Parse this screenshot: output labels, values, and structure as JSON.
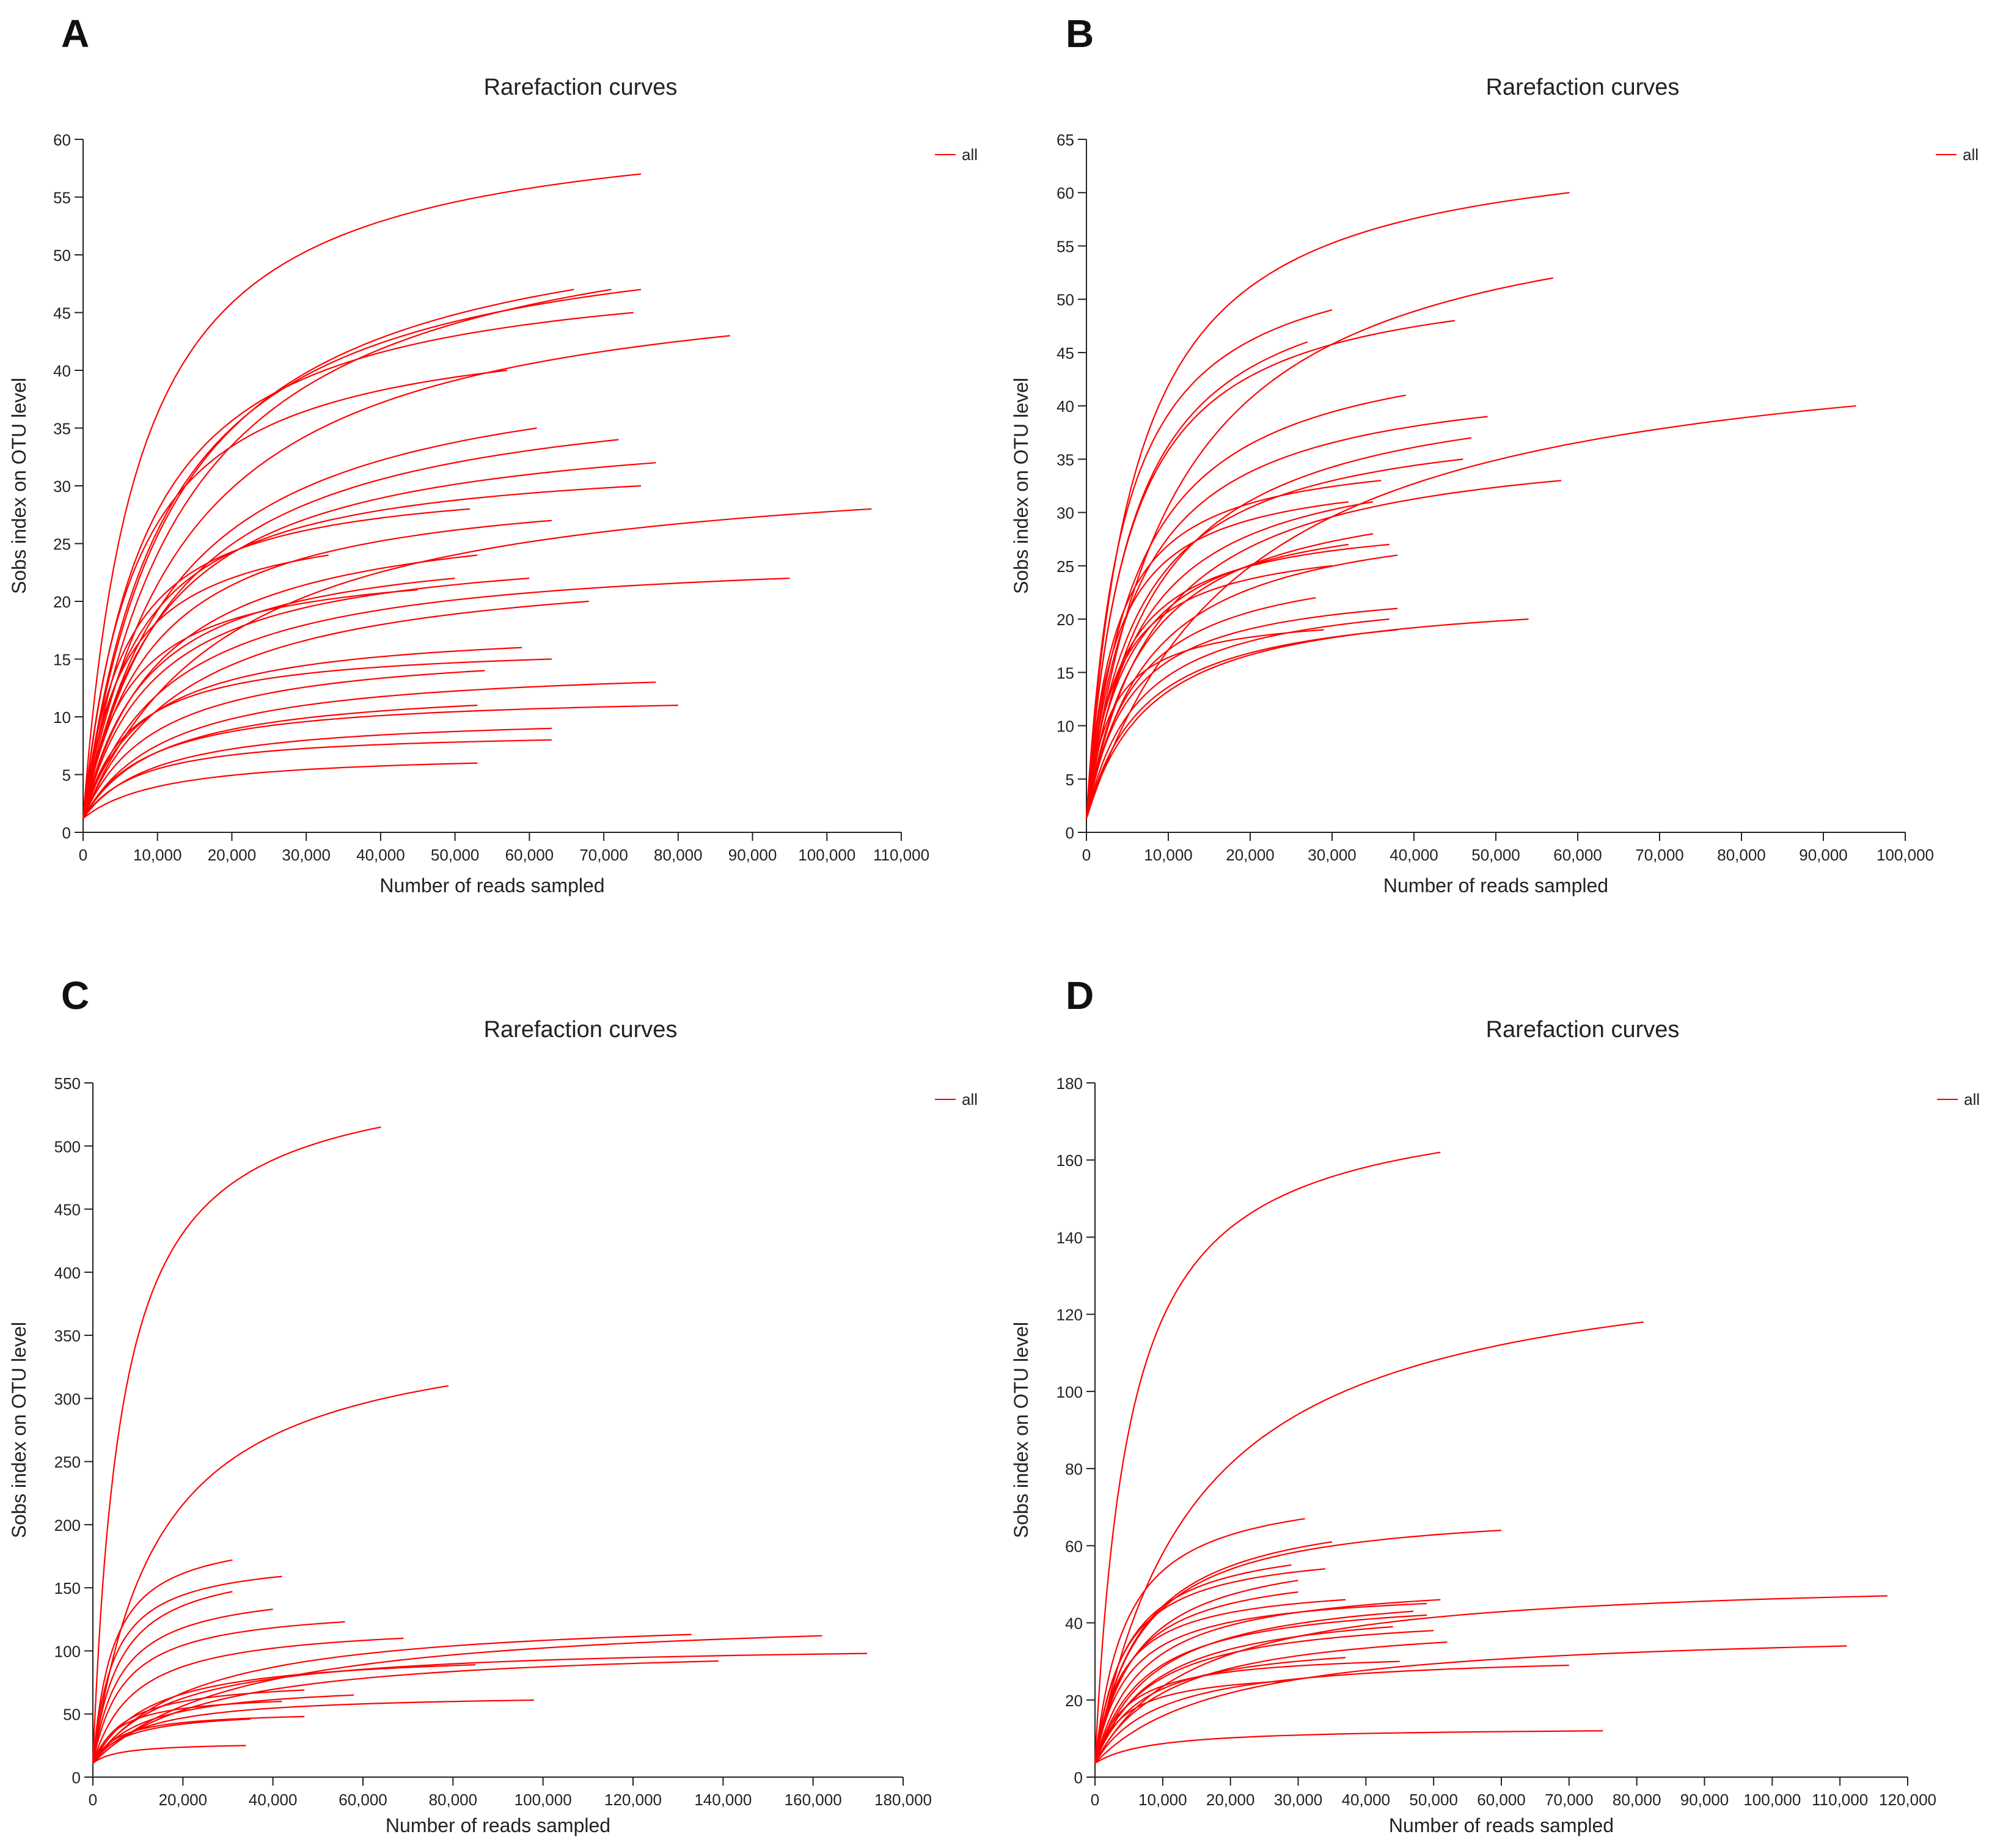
{
  "series_color": "#ff0000",
  "axis_color": "#222222",
  "chart_data": [
    {
      "panel": "A",
      "type": "line",
      "title": "Rarefaction curves",
      "xlabel": "Number of reads sampled",
      "ylabel": "Sobs index on OTU level",
      "xlim": [
        0,
        110000
      ],
      "ylim": [
        0,
        60
      ],
      "xticks": [
        0,
        10000,
        20000,
        30000,
        40000,
        50000,
        60000,
        70000,
        80000,
        90000,
        100000,
        110000
      ],
      "xtick_labels": [
        "0",
        "10,000",
        "20,000",
        "30,000",
        "40,000",
        "50,000",
        "60,000",
        "70,000",
        "80,000",
        "90,000",
        "100,000",
        "110,000"
      ],
      "yticks": [
        0,
        5,
        10,
        15,
        20,
        25,
        30,
        35,
        40,
        45,
        50,
        55,
        60
      ],
      "ytick_labels": [
        "0",
        "5",
        "10",
        "15",
        "20",
        "25",
        "30",
        "35",
        "40",
        "45",
        "50",
        "55",
        "60"
      ],
      "legend": [
        "all"
      ],
      "legend_position": "top-right",
      "series_curves": [
        [
          75000,
          57
        ],
        [
          66000,
          47
        ],
        [
          75000,
          47
        ],
        [
          74000,
          45
        ],
        [
          71000,
          47
        ],
        [
          87000,
          43
        ],
        [
          57000,
          40
        ],
        [
          61000,
          35
        ],
        [
          72000,
          34
        ],
        [
          77000,
          32
        ],
        [
          75000,
          30
        ],
        [
          106000,
          28
        ],
        [
          63000,
          27
        ],
        [
          52000,
          28
        ],
        [
          53000,
          24
        ],
        [
          60000,
          22
        ],
        [
          95000,
          22
        ],
        [
          68000,
          20
        ],
        [
          33000,
          24
        ],
        [
          59000,
          16
        ],
        [
          63000,
          15
        ],
        [
          54000,
          14
        ],
        [
          77000,
          13
        ],
        [
          80000,
          11
        ],
        [
          53000,
          11
        ],
        [
          63000,
          9
        ],
        [
          63000,
          8
        ],
        [
          53000,
          6
        ],
        [
          50000,
          22
        ],
        [
          45000,
          21
        ]
      ]
    },
    {
      "panel": "B",
      "type": "line",
      "title": "Rarefaction curves",
      "xlabel": "Number of reads sampled",
      "ylabel": "Sobs index on OTU level",
      "xlim": [
        0,
        100000
      ],
      "ylim": [
        0,
        65
      ],
      "xticks": [
        0,
        10000,
        20000,
        30000,
        40000,
        50000,
        60000,
        70000,
        80000,
        90000,
        100000
      ],
      "xtick_labels": [
        "0",
        "10,000",
        "20,000",
        "30,000",
        "40,000",
        "50,000",
        "60,000",
        "70,000",
        "80,000",
        "90,000",
        "100,000"
      ],
      "yticks": [
        0,
        5,
        10,
        15,
        20,
        25,
        30,
        35,
        40,
        45,
        50,
        55,
        60,
        65
      ],
      "ytick_labels": [
        "0",
        "5",
        "10",
        "15",
        "20",
        "25",
        "30",
        "35",
        "40",
        "45",
        "50",
        "55",
        "60",
        "65"
      ],
      "legend": [
        "all"
      ],
      "legend_position": "top-right",
      "series_curves": [
        [
          59000,
          60
        ],
        [
          57000,
          52
        ],
        [
          30000,
          49
        ],
        [
          45000,
          48
        ],
        [
          27000,
          46
        ],
        [
          39000,
          41
        ],
        [
          49000,
          39
        ],
        [
          94000,
          40
        ],
        [
          47000,
          37
        ],
        [
          46000,
          35
        ],
        [
          36000,
          33
        ],
        [
          35000,
          31
        ],
        [
          58000,
          33
        ],
        [
          37000,
          27
        ],
        [
          38000,
          26
        ],
        [
          32000,
          27
        ],
        [
          30000,
          25
        ],
        [
          28000,
          22
        ],
        [
          37000,
          20
        ],
        [
          38000,
          21
        ],
        [
          29000,
          19
        ],
        [
          38000,
          19
        ],
        [
          54000,
          20
        ],
        [
          32000,
          31
        ],
        [
          35000,
          28
        ]
      ]
    },
    {
      "panel": "C",
      "type": "line",
      "title": "Rarefaction curves",
      "xlabel": "Number of reads sampled",
      "ylabel": "Sobs index on OTU level",
      "xlim": [
        0,
        180000
      ],
      "ylim": [
        0,
        550
      ],
      "xticks": [
        0,
        20000,
        40000,
        60000,
        80000,
        100000,
        120000,
        140000,
        160000,
        180000
      ],
      "xtick_labels": [
        "0",
        "20,000",
        "40,000",
        "60,000",
        "80,000",
        "100,000",
        "120,000",
        "140,000",
        "160,000",
        "180,000"
      ],
      "yticks": [
        0,
        50,
        100,
        150,
        200,
        250,
        300,
        350,
        400,
        450,
        500,
        550
      ],
      "ytick_labels": [
        "0",
        "50",
        "100",
        "150",
        "200",
        "250",
        "300",
        "350",
        "400",
        "450",
        "500",
        "550"
      ],
      "legend": [
        "all"
      ],
      "legend_position": "top-right",
      "series_curves": [
        [
          64000,
          515
        ],
        [
          79000,
          310
        ],
        [
          31000,
          172
        ],
        [
          42000,
          159
        ],
        [
          31000,
          147
        ],
        [
          40000,
          133
        ],
        [
          56000,
          123
        ],
        [
          162000,
          112
        ],
        [
          133000,
          113
        ],
        [
          69000,
          110
        ],
        [
          172000,
          98
        ],
        [
          139000,
          92
        ],
        [
          85000,
          89
        ],
        [
          98000,
          61
        ],
        [
          58000,
          65
        ],
        [
          47000,
          69
        ],
        [
          47000,
          48
        ],
        [
          35000,
          46
        ],
        [
          34000,
          25
        ],
        [
          42000,
          60
        ]
      ]
    },
    {
      "panel": "D",
      "type": "line",
      "title": "Rarefaction curves",
      "xlabel": "Number of reads sampled",
      "ylabel": "Sobs index on OTU level",
      "xlim": [
        0,
        120000
      ],
      "ylim": [
        0,
        180
      ],
      "xticks": [
        0,
        10000,
        20000,
        30000,
        40000,
        50000,
        60000,
        70000,
        80000,
        90000,
        100000,
        110000,
        120000
      ],
      "xtick_labels": [
        "0",
        "10,000",
        "20,000",
        "30,000",
        "40,000",
        "50,000",
        "60,000",
        "70,000",
        "80,000",
        "90,000",
        "100,000",
        "110,000",
        "120,000"
      ],
      "yticks": [
        0,
        20,
        40,
        60,
        80,
        100,
        120,
        140,
        160,
        180
      ],
      "ytick_labels": [
        "0",
        "20",
        "40",
        "60",
        "80",
        "100",
        "120",
        "140",
        "160",
        "180"
      ],
      "legend": [
        "all"
      ],
      "legend_position": "top-right",
      "series_curves": [
        [
          51000,
          162
        ],
        [
          81000,
          118
        ],
        [
          31000,
          67
        ],
        [
          60000,
          64
        ],
        [
          35000,
          61
        ],
        [
          29000,
          55
        ],
        [
          34000,
          54
        ],
        [
          30000,
          51
        ],
        [
          30000,
          48
        ],
        [
          51000,
          46
        ],
        [
          49000,
          45
        ],
        [
          47000,
          43
        ],
        [
          49000,
          42
        ],
        [
          37000,
          46
        ],
        [
          44000,
          39
        ],
        [
          50000,
          38
        ],
        [
          117000,
          47
        ],
        [
          52000,
          35
        ],
        [
          111000,
          34
        ],
        [
          70000,
          29
        ],
        [
          45000,
          30
        ],
        [
          37000,
          31
        ],
        [
          29000,
          25
        ],
        [
          75000,
          12
        ]
      ]
    }
  ]
}
